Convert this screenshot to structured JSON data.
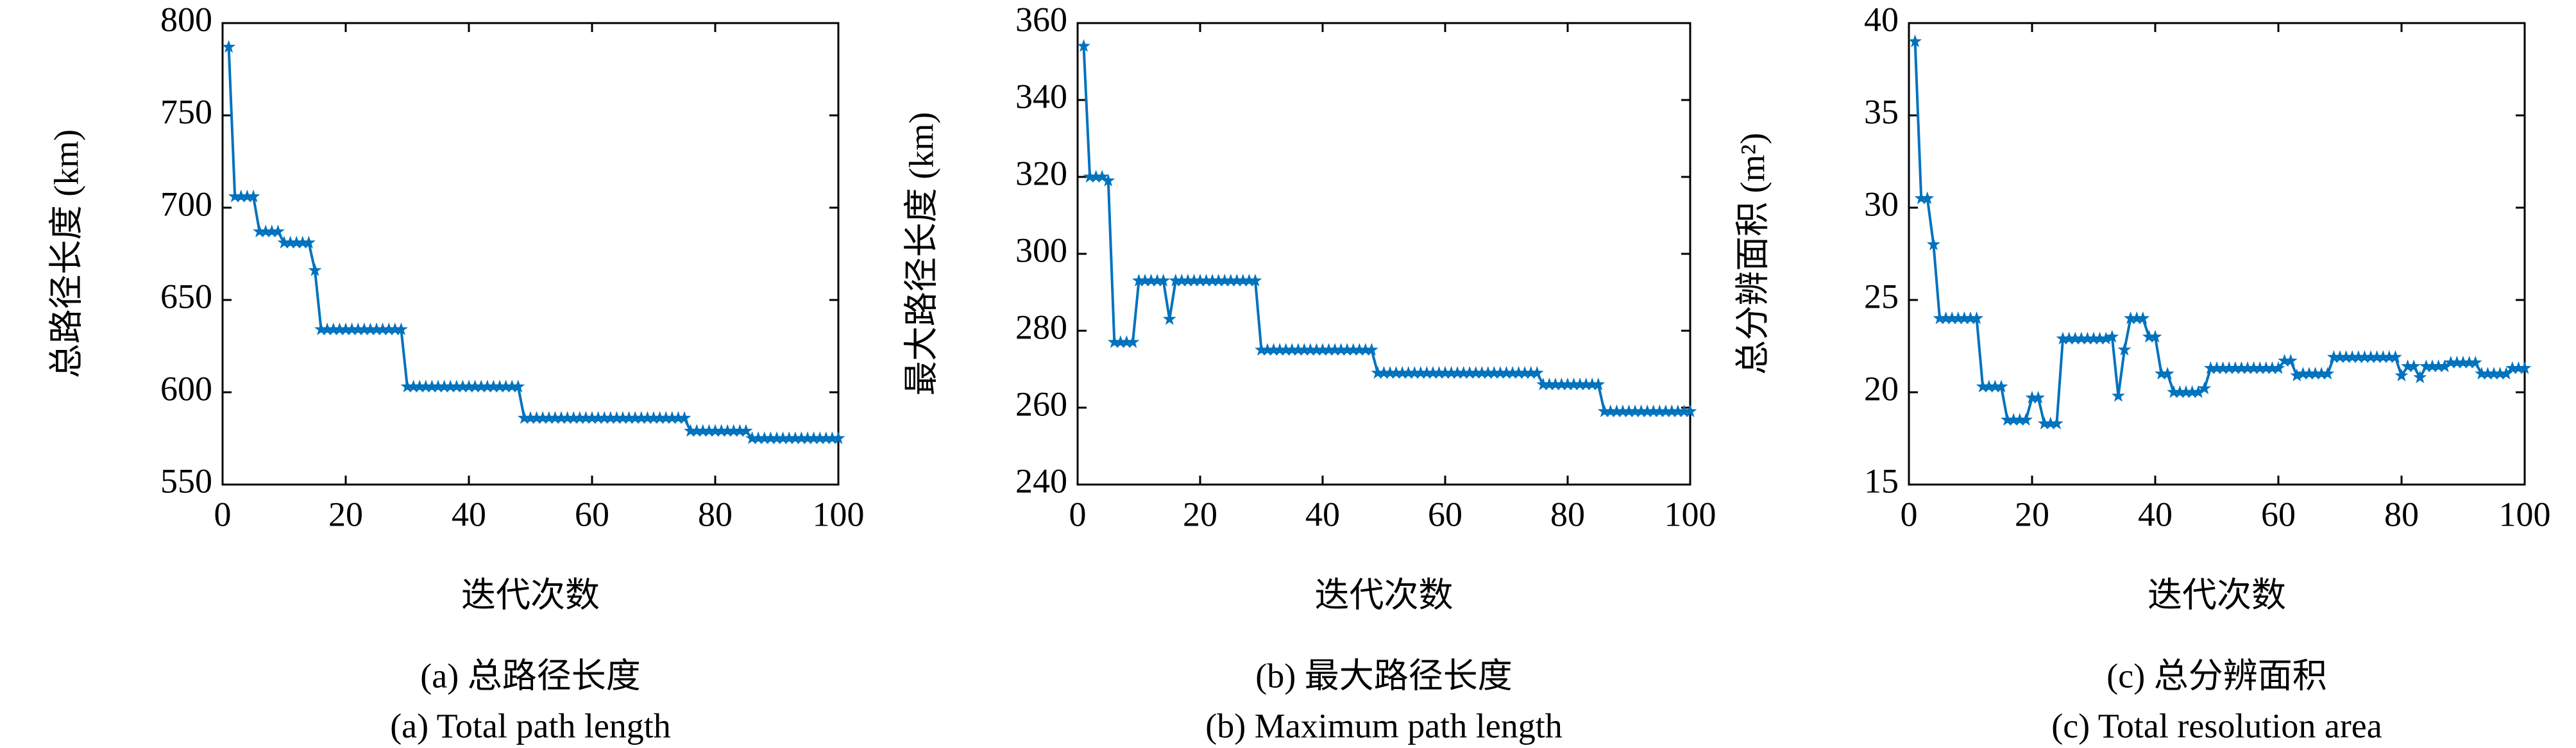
{
  "chart_data": [
    {
      "type": "line",
      "caption": "(a) 总路径长度",
      "caption_en": "(a) Total path length",
      "xlabel": "迭代次数",
      "ylabel": "总路径长度 (km)",
      "xlim": [
        0,
        100
      ],
      "xticks": [
        0,
        20,
        40,
        60,
        80,
        100
      ],
      "ylim": [
        550,
        800
      ],
      "yticks": [
        550,
        600,
        650,
        700,
        750,
        800
      ],
      "x": [
        1,
        2,
        3,
        4,
        5,
        6,
        7,
        8,
        9,
        10,
        11,
        12,
        13,
        14,
        15,
        16,
        17,
        18,
        19,
        20,
        21,
        22,
        23,
        24,
        25,
        26,
        27,
        28,
        29,
        30,
        31,
        32,
        33,
        34,
        35,
        36,
        37,
        38,
        39,
        40,
        41,
        42,
        43,
        44,
        45,
        46,
        47,
        48,
        49,
        50,
        51,
        52,
        53,
        54,
        55,
        56,
        57,
        58,
        59,
        60,
        61,
        62,
        63,
        64,
        65,
        66,
        67,
        68,
        69,
        70,
        71,
        72,
        73,
        74,
        75,
        76,
        77,
        78,
        79,
        80,
        81,
        82,
        83,
        84,
        85,
        86,
        87,
        88,
        89,
        90,
        91,
        92,
        93,
        94,
        95,
        96,
        97,
        98,
        99,
        100
      ],
      "series": [
        {
          "color": "#0072bd",
          "values": [
            787,
            706,
            706,
            706,
            706,
            687,
            687,
            687,
            687,
            681,
            681,
            681,
            681,
            681,
            666,
            634,
            634,
            634,
            634,
            634,
            634,
            634,
            634,
            634,
            634,
            634,
            634,
            634,
            634,
            603,
            603,
            603,
            603,
            603,
            603,
            603,
            603,
            603,
            603,
            603,
            603,
            603,
            603,
            603,
            603,
            603,
            603,
            603,
            586,
            586,
            586,
            586,
            586,
            586,
            586,
            586,
            586,
            586,
            586,
            586,
            586,
            586,
            586,
            586,
            586,
            586,
            586,
            586,
            586,
            586,
            586,
            586,
            586,
            586,
            586,
            579,
            579,
            579,
            579,
            579,
            579,
            579,
            579,
            579,
            579,
            575,
            575,
            575,
            575,
            575,
            575,
            575,
            575,
            575,
            575,
            575,
            575,
            575,
            575,
            575
          ]
        }
      ]
    },
    {
      "type": "line",
      "caption": "(b) 最大路径长度",
      "caption_en": "(b) Maximum path length",
      "xlabel": "迭代次数",
      "ylabel": "最大路径长度 (km)",
      "xlim": [
        0,
        100
      ],
      "xticks": [
        0,
        20,
        40,
        60,
        80,
        100
      ],
      "ylim": [
        240,
        360
      ],
      "yticks": [
        240,
        260,
        280,
        300,
        320,
        340,
        360
      ],
      "x": [
        1,
        2,
        3,
        4,
        5,
        6,
        7,
        8,
        9,
        10,
        11,
        12,
        13,
        14,
        15,
        16,
        17,
        18,
        19,
        20,
        21,
        22,
        23,
        24,
        25,
        26,
        27,
        28,
        29,
        30,
        31,
        32,
        33,
        34,
        35,
        36,
        37,
        38,
        39,
        40,
        41,
        42,
        43,
        44,
        45,
        46,
        47,
        48,
        49,
        50,
        51,
        52,
        53,
        54,
        55,
        56,
        57,
        58,
        59,
        60,
        61,
        62,
        63,
        64,
        65,
        66,
        67,
        68,
        69,
        70,
        71,
        72,
        73,
        74,
        75,
        76,
        77,
        78,
        79,
        80,
        81,
        82,
        83,
        84,
        85,
        86,
        87,
        88,
        89,
        90,
        91,
        92,
        93,
        94,
        95,
        96,
        97,
        98,
        99,
        100
      ],
      "series": [
        {
          "color": "#0072bd",
          "values": [
            354,
            320,
            320,
            320,
            319,
            277,
            277,
            277,
            277,
            293,
            293,
            293,
            293,
            293,
            283,
            293,
            293,
            293,
            293,
            293,
            293,
            293,
            293,
            293,
            293,
            293,
            293,
            293,
            293,
            275,
            275,
            275,
            275,
            275,
            275,
            275,
            275,
            275,
            275,
            275,
            275,
            275,
            275,
            275,
            275,
            275,
            275,
            275,
            269,
            269,
            269,
            269,
            269,
            269,
            269,
            269,
            269,
            269,
            269,
            269,
            269,
            269,
            269,
            269,
            269,
            269,
            269,
            269,
            269,
            269,
            269,
            269,
            269,
            269,
            269,
            266,
            266,
            266,
            266,
            266,
            266,
            266,
            266,
            266,
            266,
            259,
            259,
            259,
            259,
            259,
            259,
            259,
            259,
            259,
            259,
            259,
            259,
            259,
            259,
            259
          ]
        }
      ]
    },
    {
      "type": "line",
      "caption": "(c) 总分辨面积",
      "caption_en": "(c) Total resolution area",
      "xlabel": "迭代次数",
      "ylabel": "总分辨面积 (m²)",
      "xlim": [
        0,
        100
      ],
      "xticks": [
        0,
        20,
        40,
        60,
        80,
        100
      ],
      "ylim": [
        15,
        40
      ],
      "yticks": [
        15,
        20,
        25,
        30,
        35,
        40
      ],
      "x": [
        1,
        2,
        3,
        4,
        5,
        6,
        7,
        8,
        9,
        10,
        11,
        12,
        13,
        14,
        15,
        16,
        17,
        18,
        19,
        20,
        21,
        22,
        23,
        24,
        25,
        26,
        27,
        28,
        29,
        30,
        31,
        32,
        33,
        34,
        35,
        36,
        37,
        38,
        39,
        40,
        41,
        42,
        43,
        44,
        45,
        46,
        47,
        48,
        49,
        50,
        51,
        52,
        53,
        54,
        55,
        56,
        57,
        58,
        59,
        60,
        61,
        62,
        63,
        64,
        65,
        66,
        67,
        68,
        69,
        70,
        71,
        72,
        73,
        74,
        75,
        76,
        77,
        78,
        79,
        80,
        81,
        82,
        83,
        84,
        85,
        86,
        87,
        88,
        89,
        90,
        91,
        92,
        93,
        94,
        95,
        96,
        97,
        98,
        99,
        100
      ],
      "series": [
        {
          "color": "#0072bd",
          "values": [
            39,
            30.5,
            30.5,
            28,
            24,
            24,
            24,
            24,
            24,
            24,
            24,
            20.3,
            20.3,
            20.3,
            20.3,
            18.5,
            18.5,
            18.5,
            18.5,
            19.7,
            19.7,
            18.3,
            18.3,
            18.3,
            22.9,
            22.9,
            22.9,
            22.9,
            22.9,
            22.9,
            22.9,
            22.9,
            23,
            19.8,
            22.3,
            24,
            24,
            24,
            23,
            23,
            21,
            21,
            20,
            20,
            20,
            20,
            20,
            20.2,
            21.3,
            21.3,
            21.3,
            21.3,
            21.3,
            21.3,
            21.3,
            21.3,
            21.3,
            21.3,
            21.3,
            21.3,
            21.7,
            21.7,
            20.9,
            21,
            21,
            21,
            21,
            21,
            21.9,
            21.9,
            21.9,
            21.9,
            21.9,
            21.9,
            21.9,
            21.9,
            21.9,
            21.9,
            21.9,
            20.9,
            21.4,
            21.4,
            20.8,
            21.4,
            21.4,
            21.4,
            21.4,
            21.6,
            21.6,
            21.6,
            21.6,
            21.6,
            21,
            21,
            21,
            21,
            21,
            21.3,
            21.3,
            21.3
          ]
        }
      ]
    }
  ]
}
